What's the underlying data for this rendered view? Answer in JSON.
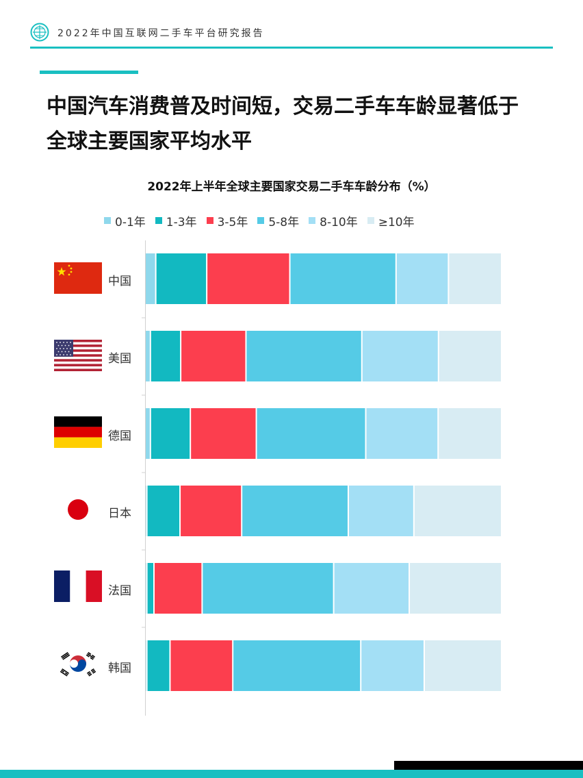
{
  "header": {
    "title": "2022年中国互联网二手车平台研究报告"
  },
  "page_title_lines": [
    "中国汽车消费普及时间短，交易二手车车龄显著低于",
    "全球主要国家平均水平"
  ],
  "colors": {
    "accent": "#19bfc1",
    "series": [
      "#8fd8ec",
      "#12b9c1",
      "#fc3e4e",
      "#55cbe6",
      "#a3dff5",
      "#d8ecf3"
    ]
  },
  "chart_data": {
    "type": "bar",
    "orientation": "horizontal",
    "stacked": true,
    "title": "2022年上半年全球主要国家交易二手车车龄分布（%）",
    "legend_position": "top",
    "categories": [
      "中国",
      "美国",
      "德国",
      "日本",
      "法国",
      "韩国"
    ],
    "series": [
      {
        "name": "0-1年",
        "values": [
          3.0,
          1.5,
          1.5,
          0.5,
          0.5,
          0.5
        ]
      },
      {
        "name": "1-3年",
        "values": [
          14.3,
          8.5,
          11.2,
          9.3,
          2.0,
          6.5
        ]
      },
      {
        "name": "3-5年",
        "values": [
          23.3,
          18.3,
          18.5,
          17.3,
          13.5,
          17.6
        ]
      },
      {
        "name": "5-8年",
        "values": [
          29.8,
          32.5,
          30.7,
          29.9,
          36.9,
          35.9
        ]
      },
      {
        "name": "8-10年",
        "values": [
          14.7,
          21.5,
          20.3,
          18.4,
          21.2,
          17.8
        ]
      },
      {
        "name": "≥10年",
        "values": [
          14.9,
          17.7,
          17.8,
          24.6,
          25.9,
          21.7
        ]
      }
    ]
  }
}
